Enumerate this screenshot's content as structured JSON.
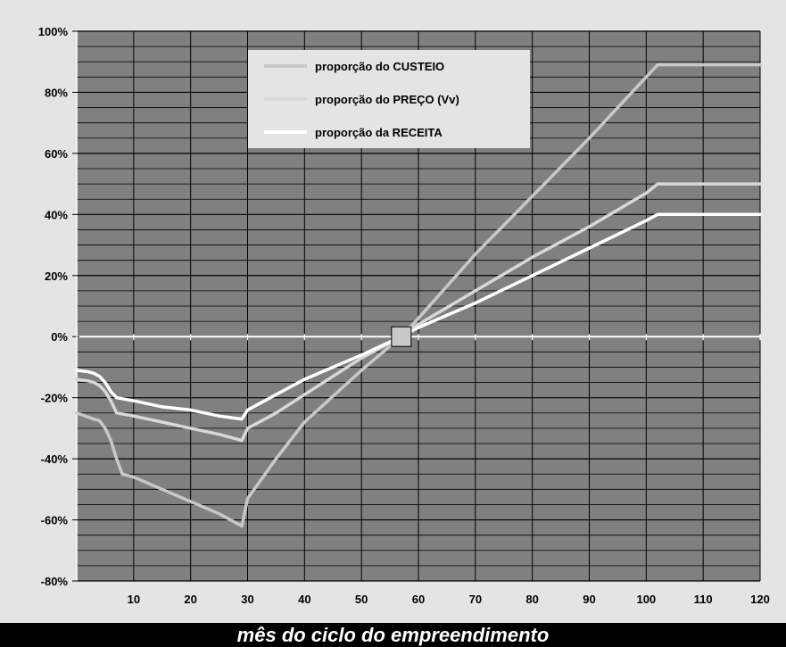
{
  "chart_data": {
    "type": "line",
    "xlabel": "mês do ciclo do empreendimento",
    "ylabel": "",
    "xlim": [
      0,
      120
    ],
    "ylim": [
      -80,
      100
    ],
    "x_ticks": [
      10,
      20,
      30,
      40,
      50,
      60,
      70,
      80,
      90,
      100,
      110,
      120
    ],
    "y_ticks": [
      -80,
      -60,
      -40,
      -20,
      0,
      20,
      40,
      60,
      80,
      100
    ],
    "y_tick_labels": [
      "-80%",
      "-60%",
      "-40%",
      "-20%",
      "0%",
      "20%",
      "40%",
      "60%",
      "80%",
      "100%"
    ],
    "grid": true,
    "legend_position": "top-center",
    "series": [
      {
        "name": "proporção do CUSTEIO",
        "color": "#c8c8c8",
        "points": [
          [
            0,
            -25
          ],
          [
            3,
            -27
          ],
          [
            4,
            -27.5
          ],
          [
            5,
            -30
          ],
          [
            6,
            -34
          ],
          [
            7,
            -40
          ],
          [
            8,
            -45
          ],
          [
            10,
            -46
          ],
          [
            15,
            -50
          ],
          [
            20,
            -54
          ],
          [
            25,
            -58
          ],
          [
            29,
            -62
          ],
          [
            30,
            -53
          ],
          [
            35,
            -40
          ],
          [
            40,
            -28
          ],
          [
            50,
            -11
          ],
          [
            57,
            0
          ],
          [
            60,
            6
          ],
          [
            70,
            27
          ],
          [
            80,
            46
          ],
          [
            90,
            65
          ],
          [
            100,
            85
          ],
          [
            102,
            89
          ],
          [
            120,
            89
          ]
        ]
      },
      {
        "name": "proporção do PREÇO (Vv)",
        "color": "#d8d8d8",
        "points": [
          [
            0,
            -14
          ],
          [
            2,
            -14.5
          ],
          [
            3,
            -15
          ],
          [
            4,
            -16
          ],
          [
            5,
            -18
          ],
          [
            6,
            -21
          ],
          [
            7,
            -25
          ],
          [
            10,
            -26
          ],
          [
            15,
            -28
          ],
          [
            20,
            -30
          ],
          [
            25,
            -32
          ],
          [
            29,
            -34
          ],
          [
            30,
            -30
          ],
          [
            35,
            -25
          ],
          [
            40,
            -19
          ],
          [
            50,
            -7
          ],
          [
            57,
            0
          ],
          [
            60,
            4
          ],
          [
            70,
            15
          ],
          [
            80,
            26
          ],
          [
            90,
            36
          ],
          [
            100,
            47
          ],
          [
            102,
            50
          ],
          [
            120,
            50
          ]
        ]
      },
      {
        "name": "proporção da RECEITA",
        "color": "#ffffff",
        "points": [
          [
            0,
            -11
          ],
          [
            2,
            -11.5
          ],
          [
            3,
            -12
          ],
          [
            4,
            -13
          ],
          [
            5,
            -15
          ],
          [
            6,
            -18
          ],
          [
            7,
            -20
          ],
          [
            10,
            -21
          ],
          [
            15,
            -23
          ],
          [
            20,
            -24
          ],
          [
            25,
            -26
          ],
          [
            29,
            -27
          ],
          [
            30,
            -24
          ],
          [
            35,
            -19
          ],
          [
            40,
            -14
          ],
          [
            50,
            -6
          ],
          [
            57,
            0
          ],
          [
            60,
            3
          ],
          [
            70,
            11
          ],
          [
            80,
            20
          ],
          [
            90,
            29
          ],
          [
            100,
            38
          ],
          [
            102,
            40
          ],
          [
            120,
            40
          ]
        ]
      }
    ],
    "marker": {
      "x": 57,
      "y": 0
    }
  }
}
